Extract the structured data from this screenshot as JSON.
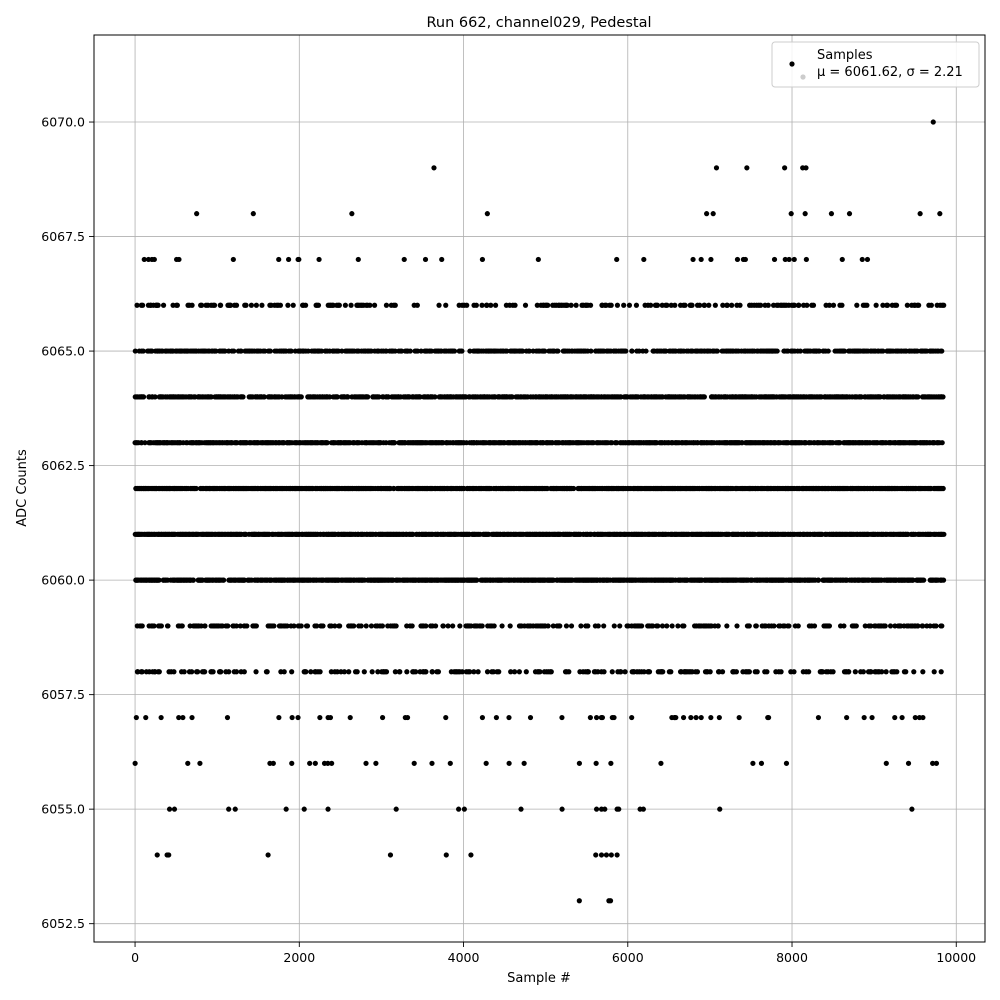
{
  "chart_data": {
    "type": "scatter",
    "title": "Run 662, channel029, Pedestal",
    "xlabel": "Sample #",
    "ylabel": "ADC Counts",
    "xlim": [
      -500,
      10350
    ],
    "ylim": [
      6052.1,
      6071.9
    ],
    "xticks": [
      0,
      2000,
      4000,
      6000,
      8000,
      10000
    ],
    "xtick_labels": [
      "0",
      "2000",
      "4000",
      "6000",
      "8000",
      "10000"
    ],
    "yticks": [
      6052.5,
      6055.0,
      6057.5,
      6060.0,
      6062.5,
      6065.0,
      6067.5,
      6070.0
    ],
    "ytick_labels": [
      "6052.5",
      "6055.0",
      "6057.5",
      "6060.0",
      "6062.5",
      "6065.0",
      "6067.5",
      "6070.0"
    ],
    "grid": true,
    "legend": {
      "placement": "top-right",
      "entries": [
        {
          "label": "Samples",
          "marker_color": "#000000"
        },
        {
          "label": "μ = 6061.62, σ = 2.21",
          "marker_color": "#cccccc"
        }
      ]
    },
    "marker_color": "#000000",
    "x_range": [
      0,
      9840
    ],
    "series": [
      {
        "points": [
          [
            750,
            6068
          ],
          [
            1440,
            6068
          ],
          [
            2640,
            6068
          ],
          [
            4290,
            6068
          ],
          [
            6960,
            6068
          ],
          [
            7040,
            6068
          ],
          [
            7990,
            6068
          ],
          [
            8160,
            6068
          ],
          [
            8480,
            6068
          ],
          [
            8700,
            6068
          ],
          [
            9560,
            6068
          ],
          [
            9800,
            6068
          ],
          [
            3640,
            6069
          ],
          [
            7080,
            6069
          ],
          [
            7450,
            6069
          ],
          [
            7910,
            6069
          ],
          [
            8130,
            6069
          ],
          [
            8170,
            6069
          ],
          [
            9720,
            6070
          ],
          [
            5410,
            6053
          ],
          [
            5770,
            6053
          ],
          [
            5790,
            6053
          ],
          [
            270,
            6054
          ],
          [
            390,
            6054
          ],
          [
            410,
            6054
          ],
          [
            1620,
            6054
          ],
          [
            3110,
            6054
          ],
          [
            3790,
            6054
          ],
          [
            4090,
            6054
          ],
          [
            5610,
            6054
          ],
          [
            5680,
            6054
          ],
          [
            5740,
            6054
          ],
          [
            5800,
            6054
          ],
          [
            5870,
            6054
          ],
          [
            420,
            6055
          ],
          [
            480,
            6055
          ],
          [
            1140,
            6055
          ],
          [
            1220,
            6055
          ],
          [
            1840,
            6055
          ],
          [
            2060,
            6055
          ],
          [
            2350,
            6055
          ],
          [
            3180,
            6055
          ],
          [
            3940,
            6055
          ],
          [
            4010,
            6055
          ],
          [
            4700,
            6055
          ],
          [
            5200,
            6055
          ],
          [
            5620,
            6055
          ],
          [
            5680,
            6055
          ],
          [
            5720,
            6055
          ],
          [
            5870,
            6055
          ],
          [
            5890,
            6055
          ],
          [
            6150,
            6055
          ],
          [
            6190,
            6055
          ],
          [
            7120,
            6055
          ],
          [
            9460,
            6055
          ]
        ]
      }
    ],
    "dense_levels": [
      6056,
      6057,
      6058,
      6059,
      6060,
      6061,
      6062,
      6063,
      6064,
      6065,
      6066,
      6067
    ]
  }
}
